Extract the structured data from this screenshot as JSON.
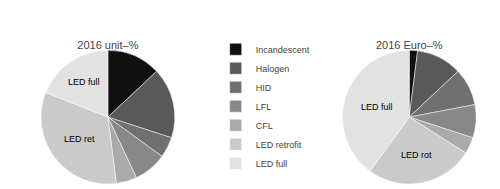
{
  "chart_data": [
    {
      "type": "pie",
      "title": "2016 unit–%",
      "categories": [
        "Incandescent",
        "Halogen",
        "HID",
        "LFL",
        "CFL",
        "LED retrofit",
        "LED full"
      ],
      "values": [
        13,
        17,
        5,
        8,
        5,
        33,
        19
      ],
      "colors": [
        "#111111",
        "#595959",
        "#707070",
        "#888888",
        "#aaaaaa",
        "#cacaca",
        "#e2e2e2"
      ],
      "annotations": [
        {
          "category": "LED retrofit",
          "text": "LED ret"
        },
        {
          "category": "LED full",
          "text": "LED full"
        }
      ],
      "legend": "right"
    },
    {
      "type": "pie",
      "title": "2016 Euro–%",
      "categories": [
        "Incandescent",
        "Halogen",
        "HID",
        "LFL",
        "CFL",
        "LED retrofit",
        "LED full"
      ],
      "values": [
        2,
        11,
        9,
        8,
        4,
        26,
        40
      ],
      "colors": [
        "#111111",
        "#595959",
        "#707070",
        "#888888",
        "#aaaaaa",
        "#cacaca",
        "#e2e2e2"
      ],
      "annotations": [
        {
          "category": "LED retrofit",
          "text": "LED rot"
        },
        {
          "category": "LED full",
          "text": "LED full"
        }
      ],
      "legend": false
    }
  ]
}
